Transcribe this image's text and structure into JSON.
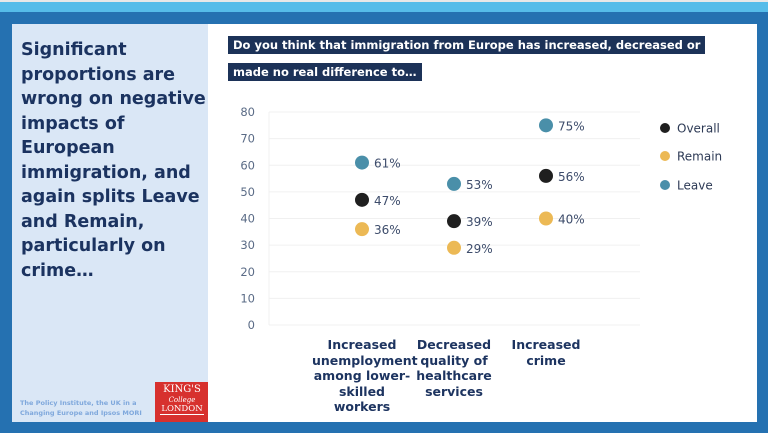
{
  "headline": "Significant proportions are wrong on negative impacts of European immigration, and again splits Leave and Remain, particularly on crime…",
  "credit": "The Policy Institute, the UK in a Changing Europe and Ipsos MORI",
  "logo": {
    "line1": "KING'S",
    "line2": "College",
    "line3": "LONDON"
  },
  "question": {
    "line1": "Do you think that immigration from Europe has increased, decreased or",
    "line2": "made no real difference to…"
  },
  "colors": {
    "Overall": "#1f1f1f",
    "Remain": "#ecb955",
    "Leave": "#4a8fa9",
    "question_bg": "#1c3258",
    "frame": "#2571b1"
  },
  "chart_data": {
    "type": "scatter",
    "categories": [
      "Increased unemployment among lower-skilled workers",
      "Decreased quality of healthcare services",
      "Increased crime"
    ],
    "series": [
      {
        "name": "Overall",
        "values": [
          47,
          39,
          56
        ],
        "labels": [
          "47%",
          "39%",
          "56%"
        ]
      },
      {
        "name": "Remain",
        "values": [
          36,
          29,
          40
        ],
        "labels": [
          "36%",
          "29%",
          "40%"
        ]
      },
      {
        "name": "Leave",
        "values": [
          61,
          53,
          75
        ],
        "labels": [
          "61%",
          "53%",
          "75%"
        ]
      }
    ],
    "yticks": [
      "0",
      "10",
      "20",
      "30",
      "40",
      "50",
      "60",
      "70",
      "80"
    ],
    "ylim": [
      0,
      80
    ],
    "grid": true,
    "legend": "right"
  }
}
